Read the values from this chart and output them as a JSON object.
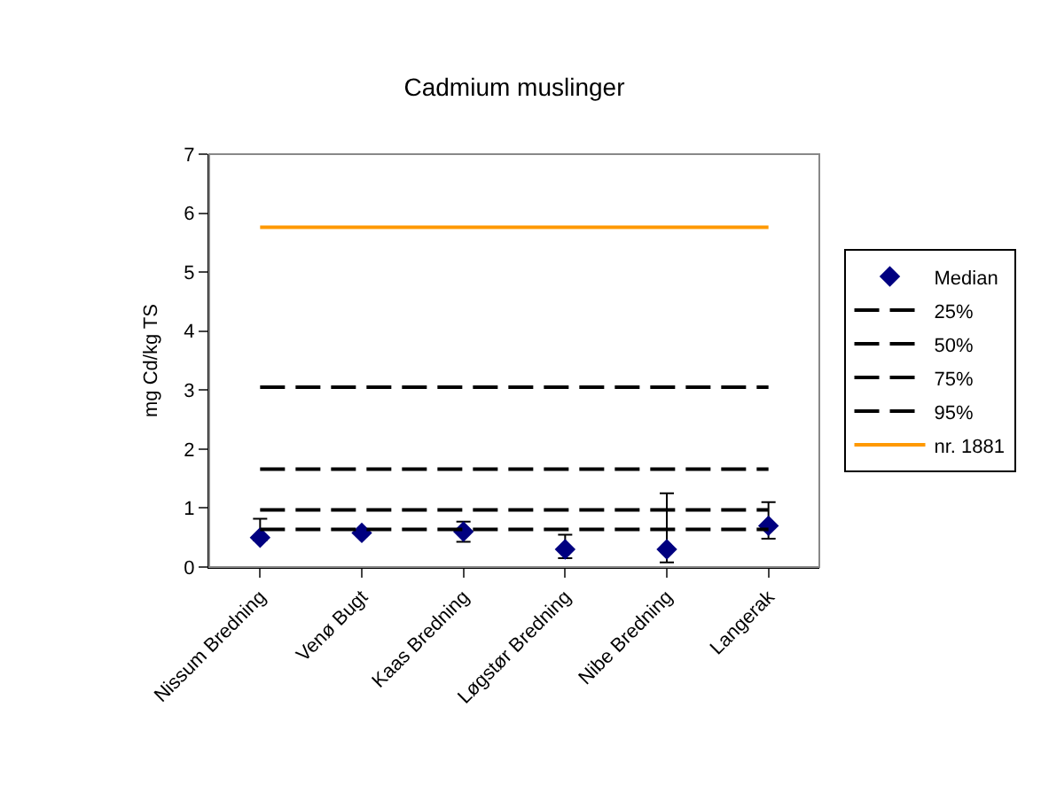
{
  "chart_data": {
    "type": "line",
    "title": "Cadmium muslinger",
    "ylabel": "mg Cd/kg TS",
    "categories": [
      "Nissum Bredning",
      "Venø Bugt",
      "Kaas Bredning",
      "Løgstør Bredning",
      "Nibe Bredning",
      "Langerak"
    ],
    "ylim": [
      0,
      7
    ],
    "yticks": [
      0,
      1,
      2,
      3,
      4,
      5,
      6,
      7
    ],
    "grid": false,
    "legend": "right",
    "series": [
      {
        "name": "Median",
        "type": "scatter",
        "marker": "diamond",
        "color": "#000080",
        "values": [
          0.5,
          0.58,
          0.6,
          0.3,
          0.3,
          0.7
        ],
        "errors": [
          [
            0.45,
            0.82
          ],
          null,
          [
            0.43,
            0.77
          ],
          [
            0.15,
            0.55
          ],
          [
            0.08,
            1.25
          ],
          [
            0.48,
            1.1
          ]
        ]
      },
      {
        "name": "25%",
        "marker": "none",
        "line_style": "dashed",
        "color": "#000000",
        "values": [
          0.64,
          0.64,
          0.64,
          0.64,
          0.64,
          0.64
        ]
      },
      {
        "name": "50%",
        "marker": "none",
        "line_style": "dashed",
        "color": "#000000",
        "values": [
          0.97,
          0.97,
          0.97,
          0.97,
          0.97,
          0.97
        ]
      },
      {
        "name": "75%",
        "marker": "none",
        "line_style": "dashed",
        "color": "#000000",
        "values": [
          1.66,
          1.66,
          1.66,
          1.66,
          1.66,
          1.66
        ]
      },
      {
        "name": "95%",
        "marker": "none",
        "line_style": "dashed",
        "color": "#000000",
        "values": [
          3.05,
          3.05,
          3.05,
          3.05,
          3.05,
          3.05
        ]
      },
      {
        "name": "nr. 1881",
        "marker": "none",
        "line_style": "solid",
        "color": "#ff9900",
        "values": [
          5.76,
          5.76,
          5.76,
          5.76,
          5.76,
          5.76
        ]
      }
    ]
  }
}
